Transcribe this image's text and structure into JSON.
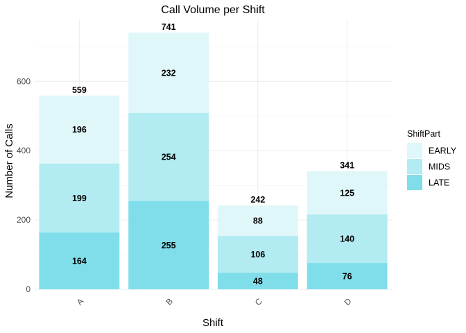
{
  "chart_data": {
    "type": "bar",
    "stacked": true,
    "title": "Call Volume per Shift",
    "xlabel": "Shift",
    "ylabel": "Number of Calls",
    "categories": [
      "A",
      "B",
      "C",
      "D"
    ],
    "series": [
      {
        "name": "LATE",
        "color": "#80deea",
        "values": [
          164,
          255,
          48,
          76
        ]
      },
      {
        "name": "MIDS",
        "color": "#b2ebf2",
        "values": [
          199,
          254,
          106,
          140
        ]
      },
      {
        "name": "EARLY",
        "color": "#e0f7fa",
        "values": [
          196,
          232,
          88,
          125
        ]
      }
    ],
    "totals": [
      559,
      741,
      242,
      341
    ],
    "ylim": [
      0,
      760
    ],
    "yticks": [
      0,
      200,
      400,
      600
    ],
    "grid": true,
    "legend": {
      "title": "ShiftPart",
      "position": "right",
      "order": [
        "EARLY",
        "MIDS",
        "LATE"
      ]
    }
  }
}
